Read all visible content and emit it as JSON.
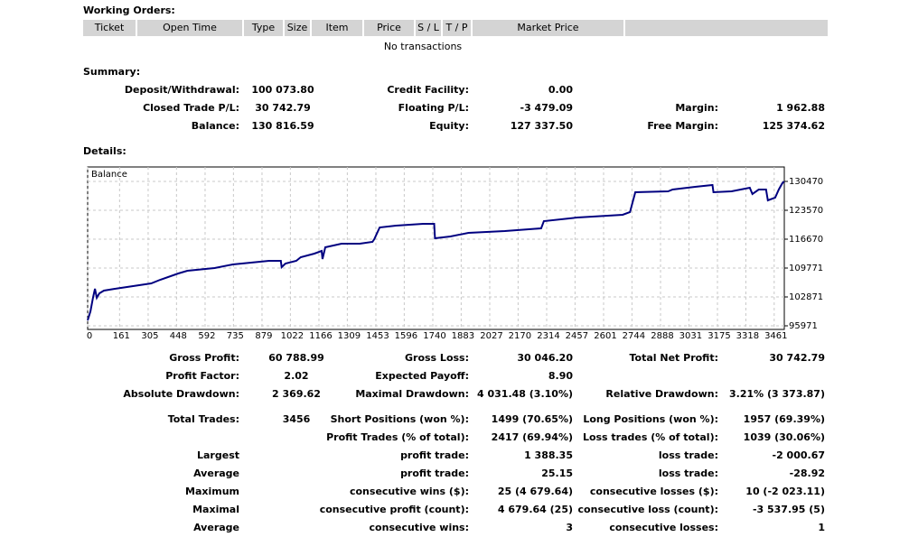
{
  "working_orders": {
    "title": "Working Orders:",
    "columns": [
      "Ticket",
      "Open Time",
      "Type",
      "Size",
      "Item",
      "Price",
      "S / L",
      "T / P",
      "Market Price"
    ],
    "empty": "No transactions"
  },
  "summary": {
    "title": "Summary:",
    "rows": [
      [
        "Deposit/Withdrawal:",
        "100 073.80",
        "Credit Facility:",
        "0.00",
        null,
        null
      ],
      [
        "Closed Trade P/L:",
        "30 742.79",
        "Floating P/L:",
        "-3 479.09",
        "Margin:",
        "1 962.88"
      ],
      [
        "Balance:",
        "130 816.59",
        "Equity:",
        "127 337.50",
        "Free Margin:",
        "125 374.62"
      ]
    ]
  },
  "details": {
    "title": "Details:",
    "rows": [
      [
        "Gross Profit:",
        "60 788.99",
        "Gross Loss:",
        "30 046.20",
        "Total Net Profit:",
        "30 742.79"
      ],
      [
        "Profit Factor:",
        "2.02",
        "Expected Payoff:",
        "8.90",
        null,
        null
      ],
      [
        "Absolute Drawdown:",
        "2 369.62",
        "Maximal Drawdown:",
        "4 031.48 (3.10%)",
        "Relative Drawdown:",
        "3.21% (3 373.87)"
      ],
      [
        "Total Trades:",
        "3456",
        "Short Positions (won %):",
        "1499 (70.65%)",
        "Long Positions (won %):",
        "1957 (69.39%)"
      ],
      [
        null,
        null,
        "Profit Trades (% of total):",
        "2417 (69.94%)",
        "Loss trades (% of total):",
        "1039 (30.06%)"
      ],
      [
        "Largest",
        null,
        "profit trade:",
        "1 388.35",
        "loss trade:",
        "-2 000.67"
      ],
      [
        "Average",
        null,
        "profit trade:",
        "25.15",
        "loss trade:",
        "-28.92"
      ],
      [
        "Maximum",
        null,
        "consecutive wins ($):",
        "25 (4 679.64)",
        "consecutive losses ($):",
        "10 (-2 023.11)"
      ],
      [
        "Maximal",
        null,
        "consecutive profit (count):",
        "4 679.64 (25)",
        "consecutive loss (count):",
        "-3 537.95 (5)"
      ],
      [
        "Average",
        null,
        "consecutive wins:",
        "3",
        "consecutive losses:",
        "1"
      ]
    ]
  },
  "chart_data": {
    "type": "line",
    "series": [
      {
        "name": "Balance",
        "color": "#000080",
        "x": [
          0,
          14,
          27,
          37,
          46,
          59,
          82,
          137,
          229,
          320,
          366,
          457,
          503,
          640,
          732,
          823,
          914,
          974,
          978,
          997,
          1052,
          1074,
          1143,
          1180,
          1184,
          1198,
          1280,
          1372,
          1436,
          1445,
          1472,
          1554,
          1692,
          1747,
          1751,
          1829,
          1920,
          2103,
          2286,
          2300,
          2469,
          2697,
          2734,
          2761,
          2926,
          2949,
          3063,
          3150,
          3155,
          3246,
          3338,
          3351,
          3383,
          3420,
          3429,
          3466,
          3484,
          3502,
          3511
        ],
        "values": [
          97265,
          99421,
          102655,
          104811,
          102655,
          103733,
          104379,
          104811,
          105457,
          106104,
          106967,
          108476,
          109123,
          109769,
          110632,
          111063,
          111494,
          111494,
          109985,
          110847,
          111494,
          112357,
          113219,
          113866,
          111925,
          114728,
          115591,
          115591,
          116022,
          116669,
          119471,
          119903,
          120334,
          120334,
          116884,
          117315,
          118178,
          118609,
          119256,
          120981,
          121843,
          122490,
          123137,
          127880,
          128095,
          128527,
          129173,
          129605,
          127880,
          128095,
          128958,
          127449,
          128527,
          128527,
          125939,
          126586,
          128527,
          130036,
          130470
        ]
      }
    ],
    "xlim": [
      0,
      3512
    ],
    "ylim": [
      95108,
      133920
    ],
    "xticks": [
      0,
      161,
      305,
      448,
      592,
      735,
      879,
      1022,
      1166,
      1309,
      1453,
      1596,
      1740,
      1883,
      2027,
      2170,
      2314,
      2457,
      2601,
      2744,
      2888,
      3031,
      3175,
      3318,
      3461
    ],
    "yticks": [
      95971,
      102871,
      109771,
      116670,
      123570,
      130470
    ],
    "grid": true
  }
}
